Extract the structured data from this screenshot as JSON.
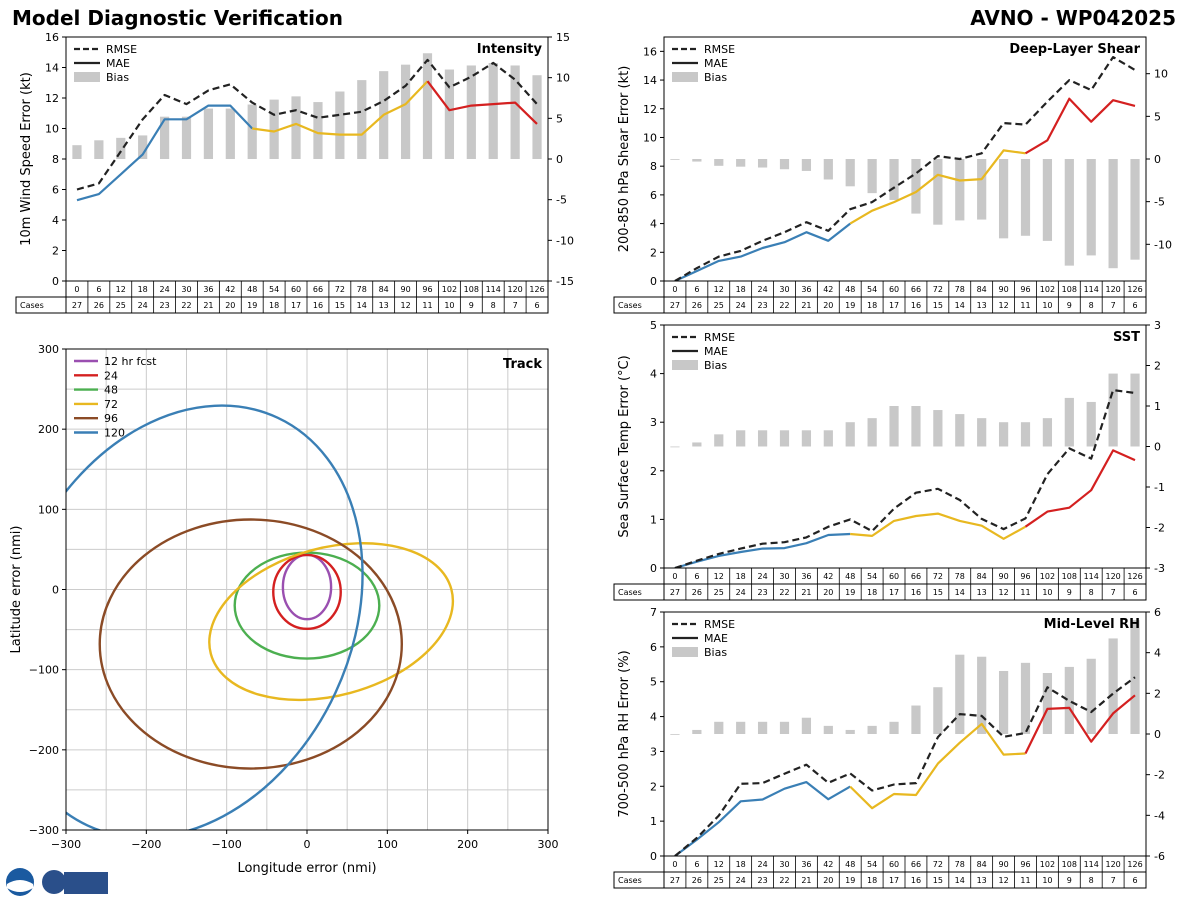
{
  "page": {
    "title_left": "Model Diagnostic Verification",
    "title_right": "AVNO - WP042025"
  },
  "colors": {
    "seg1": "#3a7fb5",
    "seg2": "#e8b820",
    "seg3": "#d42020",
    "rmse": "#222222",
    "bias": "#c8c8c8",
    "grid": "#cccccc"
  },
  "taus": [
    "0",
    "6",
    "12",
    "18",
    "24",
    "30",
    "36",
    "42",
    "48",
    "54",
    "60",
    "66",
    "72",
    "78",
    "84",
    "90",
    "96",
    "102",
    "108",
    "114",
    "120",
    "126"
  ],
  "cases": [
    "27",
    "26",
    "25",
    "24",
    "23",
    "22",
    "21",
    "20",
    "19",
    "18",
    "17",
    "16",
    "15",
    "14",
    "13",
    "12",
    "11",
    "10",
    "9",
    "8",
    "7",
    "6"
  ],
  "table_label": "Cases",
  "legend": {
    "rmse": "RMSE",
    "mae": "MAE",
    "bias": "Bias"
  },
  "chart_data": [
    {
      "id": "intensity",
      "type": "line+bar",
      "title": "Intensity",
      "ylabel": "10m Wind Speed Error (kt)",
      "ylim": [
        0,
        16
      ],
      "yticks": [
        0,
        2,
        4,
        6,
        8,
        10,
        12,
        14,
        16
      ],
      "y2lim": [
        -15,
        15
      ],
      "y2ticks": [
        -15,
        -10,
        -5,
        0,
        5,
        10,
        15
      ],
      "rmse": [
        6.0,
        6.4,
        8.5,
        10.6,
        12.2,
        11.6,
        12.5,
        12.9,
        11.7,
        10.9,
        11.2,
        10.7,
        10.9,
        11.1,
        11.8,
        12.8,
        14.5,
        12.7,
        13.4,
        14.3,
        13.2,
        11.6
      ],
      "mae": [
        5.3,
        5.7,
        7.0,
        8.3,
        10.6,
        10.6,
        11.5,
        11.5,
        10.0,
        9.8,
        10.3,
        9.7,
        9.6,
        9.6,
        10.9,
        11.6,
        13.1,
        11.2,
        11.5,
        11.6,
        11.7,
        10.3
      ],
      "bias": [
        1.7,
        2.3,
        2.6,
        2.9,
        5.2,
        5.2,
        6.2,
        6.2,
        6.7,
        7.3,
        7.7,
        7.0,
        8.3,
        9.7,
        10.8,
        11.6,
        13.0,
        11.0,
        11.5,
        11.8,
        11.5,
        10.3
      ]
    },
    {
      "id": "shear",
      "type": "line+bar",
      "title": "Deep-Layer Shear",
      "ylabel": "200-850 hPa Shear Error (kt)",
      "ylim": [
        0,
        17
      ],
      "yticks": [
        0,
        2,
        4,
        6,
        8,
        10,
        12,
        14,
        16
      ],
      "y2lim": [
        -14.3,
        14.3
      ],
      "y2ticks": [
        -10,
        -5,
        0,
        5,
        10
      ],
      "rmse": [
        0.0,
        0.9,
        1.7,
        2.1,
        2.8,
        3.4,
        4.1,
        3.5,
        5.0,
        5.5,
        6.5,
        7.5,
        8.7,
        8.5,
        8.9,
        11.0,
        10.9,
        12.5,
        14.0,
        13.3,
        15.6,
        14.7
      ],
      "mae": [
        0.0,
        0.7,
        1.4,
        1.7,
        2.3,
        2.7,
        3.4,
        2.8,
        4.0,
        4.9,
        5.5,
        6.2,
        7.4,
        7.0,
        7.1,
        9.1,
        8.9,
        9.8,
        12.7,
        11.1,
        12.6,
        12.2
      ],
      "bias": [
        0.0,
        -0.3,
        -0.8,
        -0.9,
        -1.0,
        -1.2,
        -1.4,
        -2.4,
        -3.2,
        -4.0,
        -4.8,
        -6.4,
        -7.7,
        -7.2,
        -7.1,
        -9.3,
        -9.0,
        -9.6,
        -12.5,
        -11.3,
        -12.8,
        -11.8
      ]
    },
    {
      "id": "sst",
      "type": "line+bar",
      "title": "SST",
      "ylabel": "Sea Surface Temp Error (°C)",
      "ylim": [
        0,
        5
      ],
      "yticks": [
        0,
        1,
        2,
        3,
        4,
        5
      ],
      "y2lim": [
        -3,
        3
      ],
      "y2ticks": [
        -3,
        -2,
        -1,
        0,
        1,
        2,
        3
      ],
      "rmse": [
        0.0,
        0.15,
        0.29,
        0.4,
        0.5,
        0.53,
        0.63,
        0.85,
        1.0,
        0.76,
        1.22,
        1.55,
        1.63,
        1.4,
        1.01,
        0.8,
        1.02,
        1.93,
        2.46,
        2.25,
        3.66,
        3.6
      ],
      "mae": [
        0.0,
        0.13,
        0.25,
        0.33,
        0.4,
        0.41,
        0.51,
        0.68,
        0.7,
        0.66,
        0.97,
        1.07,
        1.12,
        0.97,
        0.87,
        0.6,
        0.85,
        1.16,
        1.24,
        1.6,
        2.42,
        2.22
      ],
      "bias": [
        0.0,
        0.1,
        0.3,
        0.4,
        0.4,
        0.4,
        0.4,
        0.4,
        0.6,
        0.7,
        1.0,
        1.0,
        0.9,
        0.8,
        0.7,
        0.6,
        0.6,
        0.7,
        1.2,
        1.1,
        1.8,
        1.8
      ]
    },
    {
      "id": "rh",
      "type": "line+bar",
      "title": "Mid-Level RH",
      "ylabel": "700-500 hPa RH Error (%)",
      "ylim": [
        0,
        7
      ],
      "yticks": [
        0,
        1,
        2,
        3,
        4,
        5,
        6,
        7
      ],
      "y2lim": [
        -6,
        6
      ],
      "y2ticks": [
        -6,
        -4,
        -2,
        0,
        2,
        4,
        6
      ],
      "rmse": [
        0.0,
        0.52,
        1.16,
        2.07,
        2.09,
        2.36,
        2.62,
        2.1,
        2.37,
        1.88,
        2.05,
        2.09,
        3.41,
        4.07,
        4.02,
        3.42,
        3.53,
        4.84,
        4.45,
        4.13,
        4.66,
        5.13
      ],
      "mae": [
        0.0,
        0.47,
        0.97,
        1.57,
        1.62,
        1.93,
        2.12,
        1.63,
        1.99,
        1.37,
        1.78,
        1.75,
        2.65,
        3.25,
        3.79,
        2.91,
        2.94,
        4.22,
        4.25,
        3.28,
        4.09,
        4.61
      ],
      "bias": [
        0.0,
        0.2,
        0.6,
        0.6,
        0.6,
        0.6,
        0.8,
        0.4,
        0.2,
        0.4,
        0.6,
        1.4,
        2.3,
        3.9,
        3.8,
        3.1,
        3.5,
        3.0,
        3.3,
        3.7,
        4.7,
        5.6
      ]
    },
    {
      "id": "track",
      "type": "ellipse",
      "title": "Track",
      "xlabel": "Longitude error (nmi)",
      "ylabel": "Latitude error (nmi)",
      "xlim": [
        -300,
        300
      ],
      "ylim": [
        -300,
        300
      ],
      "xticks": [
        -300,
        -200,
        -100,
        0,
        100,
        200,
        300
      ],
      "yticks": [
        -300,
        -200,
        -100,
        0,
        100,
        200,
        300
      ],
      "ellipses": [
        {
          "label": "12 hr fcst",
          "color": "#9a4fb0",
          "cx": 0,
          "cy": 3,
          "rx": 30,
          "ry": 40,
          "angle": 0
        },
        {
          "label": "24",
          "color": "#d42020",
          "cx": 0,
          "cy": -3,
          "rx": 42,
          "ry": 46,
          "angle": 0
        },
        {
          "label": "48",
          "color": "#4caf50",
          "cx": 0,
          "cy": -20,
          "rx": 90,
          "ry": 66,
          "angle": 0
        },
        {
          "label": "72",
          "color": "#e8b820",
          "cx": 30,
          "cy": -40,
          "rx": 155,
          "ry": 92,
          "angle": 15
        },
        {
          "label": "96",
          "color": "#8b4b26",
          "cx": -70,
          "cy": -68,
          "rx": 188,
          "ry": 155,
          "angle": 0
        },
        {
          "label": "120",
          "color": "#3a7fb5",
          "cx": -155,
          "cy": -40,
          "rx": 280,
          "ry": 210,
          "angle": 65
        }
      ]
    }
  ]
}
